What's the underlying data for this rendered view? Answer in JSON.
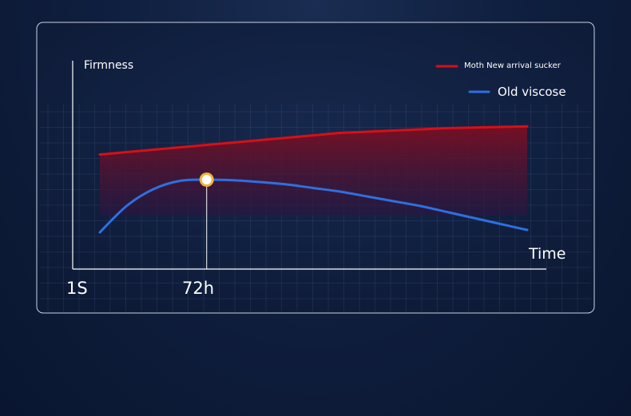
{
  "chart_data": {
    "type": "area",
    "title": "",
    "xlabel": "Time",
    "ylabel": "Firmness",
    "x_ticks": [
      "1S",
      "72h"
    ],
    "series": [
      {
        "name": "Moth New arrival sucker",
        "color": "#d90f16",
        "x": [
          0,
          1,
          2,
          3,
          4,
          5,
          6,
          7,
          8,
          9,
          10,
          11,
          12,
          13,
          14,
          15,
          16
        ],
        "values": [
          0.71,
          0.73,
          0.75,
          0.77,
          0.79,
          0.81,
          0.83,
          0.85,
          0.87,
          0.89,
          0.9,
          0.91,
          0.92,
          0.93,
          0.935,
          0.94,
          0.945
        ]
      },
      {
        "name": "Old viscose",
        "color": "#2f6fe0",
        "x": [
          0,
          1,
          2,
          3,
          4,
          5,
          6,
          7,
          8,
          9,
          10,
          11,
          12,
          13,
          14,
          15,
          16
        ],
        "values": [
          0.06,
          0.28,
          0.42,
          0.49,
          0.5,
          0.495,
          0.48,
          0.46,
          0.43,
          0.4,
          0.36,
          0.32,
          0.28,
          0.23,
          0.18,
          0.13,
          0.08
        ]
      }
    ],
    "highlight_index": 4,
    "grid": true,
    "legend": "top-right"
  }
}
